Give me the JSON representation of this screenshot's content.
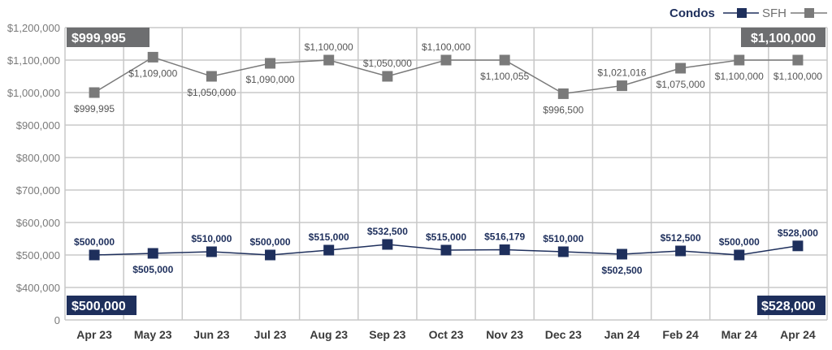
{
  "chart_data": {
    "type": "line",
    "categories": [
      "Apr 23",
      "May 23",
      "Jun 23",
      "Jul 23",
      "Aug 23",
      "Sep 23",
      "Oct 23",
      "Nov 23",
      "Dec 23",
      "Jan 24",
      "Feb 24",
      "Mar 24",
      "Apr 24"
    ],
    "ylim": [
      0,
      1200000
    ],
    "y_ticks": [
      0,
      400000,
      500000,
      600000,
      700000,
      800000,
      900000,
      1000000,
      1100000,
      1200000
    ],
    "y_tick_labels": [
      "0",
      "$400,000",
      "$500,000",
      "$600,000",
      "$700,000",
      "$800,000",
      "$900,000",
      "$1,000,000",
      "$1,100,000",
      "$1,200,000"
    ],
    "grid": true,
    "legend_position": "top-right",
    "series": [
      {
        "name": "Condos",
        "color": "#1e2f5c",
        "values": [
          500000,
          505000,
          510000,
          500000,
          515000,
          532500,
          515000,
          516179,
          510000,
          502500,
          512500,
          500000,
          528000
        ],
        "labels": [
          "$500,000",
          "$505,000",
          "$510,000",
          "$500,000",
          "$515,000",
          "$532,500",
          "$515,000",
          "$516,179",
          "$510,000",
          "$502,500",
          "$512,500",
          "$500,000",
          "$528,000"
        ],
        "label_pos": [
          "above",
          "below",
          "above",
          "above",
          "above",
          "above",
          "above",
          "above",
          "above",
          "below",
          "above",
          "above",
          "above"
        ]
      },
      {
        "name": "SFH",
        "color": "#7a7a7a",
        "values": [
          999995,
          1109000,
          1050000,
          1090000,
          1100000,
          1050000,
          1100000,
          1100055,
          996500,
          1021016,
          1075000,
          1100000,
          1100000
        ],
        "labels": [
          "$999,995",
          "$1,109,000",
          "$1,050,000",
          "$1,090,000",
          "$1,100,000",
          "$1,050,000",
          "$1,100,000",
          "$1,100,055",
          "$996,500",
          "$1,021,016",
          "$1,075,000",
          "$1,100,000",
          "$1,100,000"
        ],
        "label_pos": [
          "below",
          "below",
          "below",
          "below",
          "above",
          "above",
          "above",
          "below",
          "below",
          "above",
          "below",
          "below",
          "below"
        ]
      }
    ],
    "callouts": {
      "sfh_start": "$999,995",
      "sfh_end": "$1,100,000",
      "condo_start": "$500,000",
      "condo_end": "$528,000"
    }
  }
}
